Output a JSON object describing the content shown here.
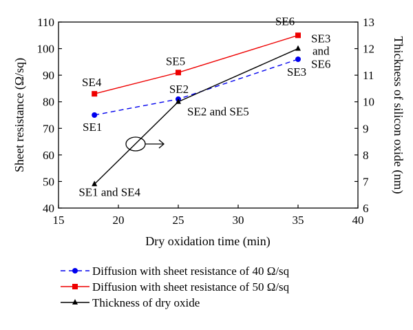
{
  "chart_data": {
    "type": "line",
    "xlabel": "Dry oxidation time (min)",
    "ylabel_left": "Sheet resistance (Ω/sq)",
    "ylabel_right": "Thickness of silicon oxide (nm)",
    "xlim": [
      15,
      40
    ],
    "ylim_left": [
      40,
      110
    ],
    "ylim_right": [
      6,
      13
    ],
    "x_ticks": [
      15,
      20,
      25,
      30,
      35,
      40
    ],
    "y_ticks_left": [
      40,
      50,
      60,
      70,
      80,
      90,
      100,
      110
    ],
    "y_ticks_right": [
      6,
      7,
      8,
      9,
      10,
      11,
      12,
      13
    ],
    "grid": false,
    "legend_position": "below",
    "series": [
      {
        "name": "Diffusion with sheet resistance of 40 Ω/sq",
        "axis": "left",
        "color": "#0000ee",
        "line_style": "dashed",
        "marker": "circle",
        "x": [
          18,
          25,
          35
        ],
        "y": [
          75,
          81,
          96
        ]
      },
      {
        "name": "Diffusion with sheet resistance of 50 Ω/sq",
        "axis": "left",
        "color": "#ee0000",
        "line_style": "solid",
        "marker": "square",
        "x": [
          18,
          25,
          35
        ],
        "y": [
          83,
          91,
          105
        ]
      },
      {
        "name": "Thickness of dry oxide",
        "axis": "right",
        "color": "#000000",
        "line_style": "solid",
        "marker": "triangle",
        "x": [
          18,
          25,
          35
        ],
        "y": [
          6.9,
          10.0,
          12.0
        ]
      }
    ],
    "annotations": [
      {
        "text": "SE4",
        "x": 18,
        "y": 83,
        "axis": "left"
      },
      {
        "text": "SE1",
        "x": 18,
        "y": 75,
        "axis": "left"
      },
      {
        "text": "SE5",
        "x": 25,
        "y": 91,
        "axis": "left"
      },
      {
        "text": "SE2",
        "x": 25,
        "y": 81,
        "axis": "left"
      },
      {
        "text": "SE6",
        "x": 35,
        "y": 105,
        "axis": "left"
      },
      {
        "text": "SE3",
        "x": 35,
        "y": 96,
        "axis": "left"
      },
      {
        "text": "SE1 and SE4",
        "x": 18,
        "y": 6.9,
        "axis": "right"
      },
      {
        "text": "SE2 and SE5",
        "x": 25,
        "y": 10.0,
        "axis": "right"
      },
      {
        "text": "SE3",
        "x": 35,
        "y": 12.0,
        "axis": "right"
      },
      {
        "text": "and",
        "x": 35,
        "y": 12.0,
        "axis": "right"
      },
      {
        "text": "SE6",
        "x": 35,
        "y": 12.0,
        "axis": "right"
      }
    ]
  }
}
